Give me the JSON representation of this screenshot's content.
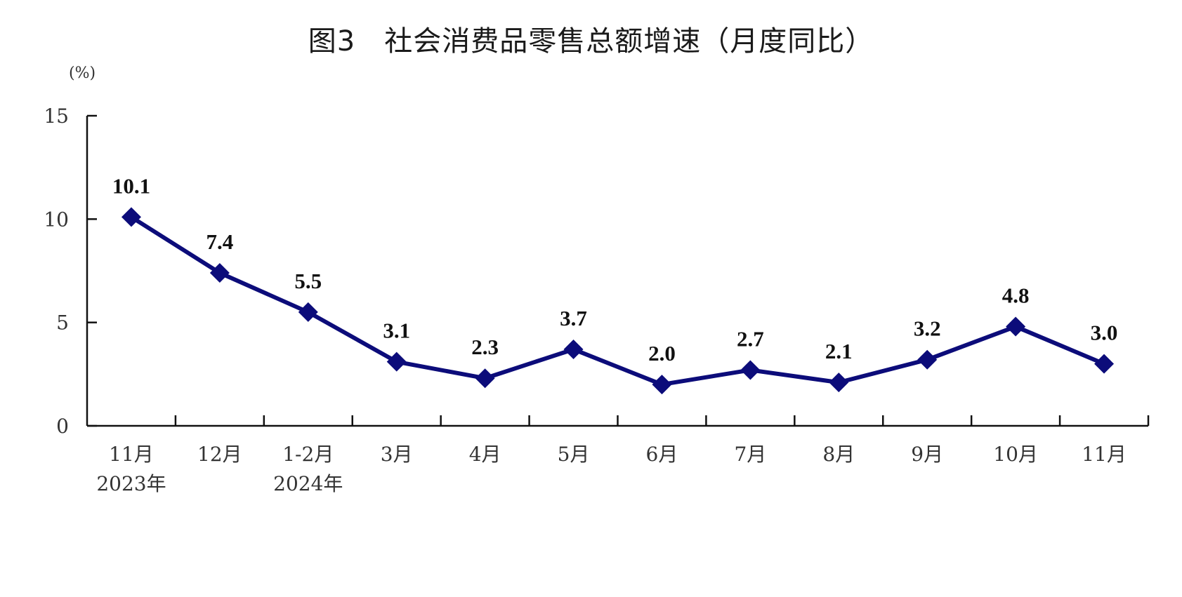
{
  "title": "图3　社会消费品零售总额增速（月度同比）",
  "unit": "(%)",
  "colors": {
    "series": "#0c0c7a",
    "axis": "#111111"
  },
  "chart_data": {
    "type": "line",
    "title": "图3　社会消费品零售总额增速（月度同比）",
    "ylabel": "(%)",
    "xlabel": "",
    "ylim": [
      0,
      15
    ],
    "yticks": [
      0,
      5,
      10,
      15
    ],
    "grid": false,
    "legend": "none",
    "categories": [
      "11月",
      "12月",
      "1-2月",
      "3月",
      "4月",
      "5月",
      "6月",
      "7月",
      "8月",
      "9月",
      "10月",
      "11月"
    ],
    "category_sublabels": [
      "2023年",
      "",
      "2024年",
      "",
      "",
      "",
      "",
      "",
      "",
      "",
      "",
      ""
    ],
    "marker": "diamond",
    "series": [
      {
        "values": [
          10.1,
          7.4,
          5.5,
          3.1,
          2.3,
          3.7,
          2.0,
          2.7,
          2.1,
          3.2,
          4.8,
          3.0
        ],
        "data_labels": [
          "10.1",
          "7.4",
          "5.5",
          "3.1",
          "2.3",
          "3.7",
          "2.0",
          "2.7",
          "2.1",
          "3.2",
          "4.8",
          "3.0"
        ]
      }
    ]
  }
}
